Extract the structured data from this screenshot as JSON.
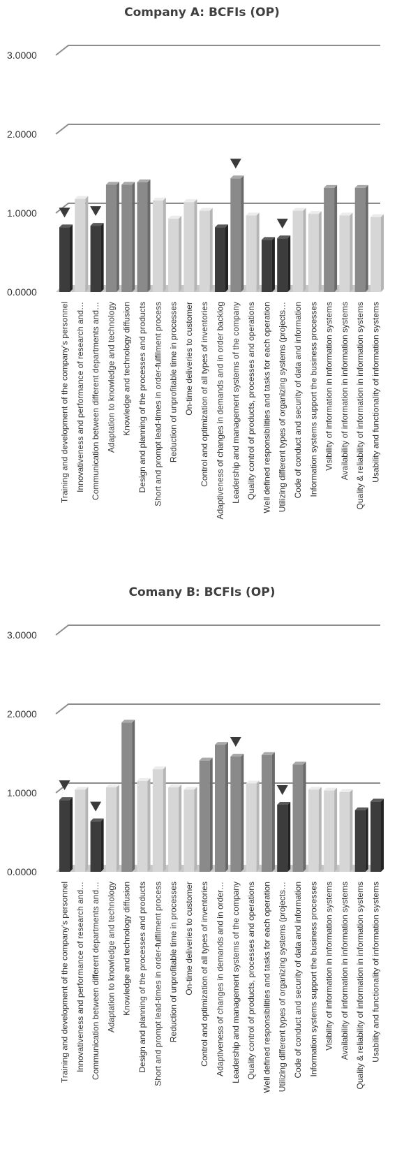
{
  "chart_data": [
    {
      "type": "bar",
      "title": "Company A: BCFIs (OP)",
      "ylim": [
        0,
        3
      ],
      "yticks": [
        "0.0000",
        "1.0000",
        "2.0000",
        "3.0000"
      ],
      "grid": true,
      "categories": [
        "Training and development of the company's personnel",
        "Innovativeness and performance of research and…",
        "Communication between  different departments and…",
        "Adaptation to knowledge and technology",
        "Knowledge and technology diffusion",
        "Design and planning of the processes and products",
        "Short and prompt lead-times in order-fulfilment process",
        "Reduction of unprofitable time in processes",
        "On-time deliveries to customer",
        "Control and optimization of all types of inventories",
        "Adaptiveness of changes in demands and in order backlog",
        "Leadership and management systems of the company",
        "Quality control of products, processes and operations",
        "Well defined responsibilities and tasks for each operation",
        "Utilizing different types of organizing systems (projects…",
        "Code of conduct and security of data and information",
        "Information systems support the business processes",
        "Visibility of information in information systems",
        "Availability of information in information systems",
        "Quality & reliability of information in information systems",
        "Usability and functionality of information systems"
      ],
      "values": [
        0.82,
        1.18,
        0.84,
        1.36,
        1.36,
        1.39,
        1.16,
        0.93,
        1.14,
        1.03,
        0.82,
        1.44,
        0.97,
        0.66,
        0.68,
        1.03,
        0.99,
        1.32,
        0.97,
        1.32,
        0.95
      ],
      "bar_shades": [
        "dark",
        "light",
        "dark",
        "mid",
        "mid",
        "mid",
        "light",
        "light",
        "light",
        "light",
        "dark",
        "mid",
        "light",
        "dark",
        "dark",
        "light",
        "light",
        "mid",
        "light",
        "mid",
        "light"
      ],
      "markers": [
        0,
        2,
        11,
        14
      ]
    },
    {
      "type": "bar",
      "title": "Comany B: BCFIs (OP)",
      "ylim": [
        0,
        3
      ],
      "yticks": [
        "0.0000",
        "1.0000",
        "2.0000",
        "3.0000"
      ],
      "grid": true,
      "categories": [
        "Training and development of the company's personnel",
        "Innovativeness and performance of research and…",
        "Communication between  different departments and…",
        "Adaptation to knowledge and technology",
        "Knowledge and technology diffusion",
        "Design and planning of the processes and products",
        "Short and prompt lead-times in order-fulfilment process",
        "Reduction of unprofitable time in processes",
        "On-time deliveries to customer",
        "Control and optimization of all types of inventories",
        "Adaptiveness of changes in demands and in order…",
        "Leadership and management systems of the company",
        "Quality control of products, processes and operations",
        "Well defined responsibilities and tasks for each operation",
        "Utilizing different types of organizing systems (projects…",
        "Code of conduct and security of data and information",
        "Information systems support the business processes",
        "Visibility of information in information systems",
        "Availability of information in information systems",
        "Quality & reliability of information in information systems",
        "Usability and functionality of information systems"
      ],
      "values": [
        0.91,
        1.04,
        0.64,
        1.07,
        1.89,
        1.15,
        1.3,
        1.07,
        1.04,
        1.41,
        1.61,
        1.46,
        1.12,
        1.48,
        0.85,
        1.36,
        1.04,
        1.03,
        1.01,
        0.78,
        0.89
      ],
      "bar_shades": [
        "dark",
        "light",
        "dark",
        "light",
        "mid",
        "light",
        "light",
        "light",
        "light",
        "mid",
        "mid",
        "mid",
        "light",
        "mid",
        "dark",
        "mid",
        "light",
        "light",
        "light",
        "dark",
        "dark"
      ],
      "markers": [
        0,
        2,
        11,
        14
      ]
    }
  ],
  "colors": {
    "dark": "#3c3c3c",
    "mid": "#8a8a8a",
    "light": "#d6d6d6",
    "grid": "#8c8c8c",
    "floor": "#c8c8c8",
    "marker": "#3a3a3a"
  }
}
